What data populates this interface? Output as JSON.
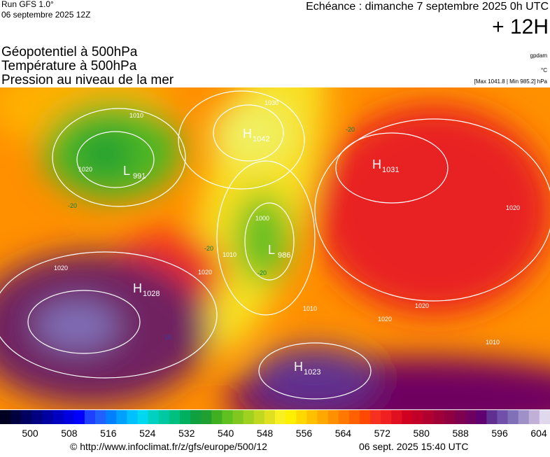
{
  "header": {
    "run": "Run GFS 1.0°",
    "run_date": "06 septembre 2025 12Z",
    "forecast": "Echéance : dimanche 7 septembre 2025 0h UTC",
    "lead": "+ 12H"
  },
  "fields": [
    "Géopotentiel à 500hPa",
    "Température à 500hPa",
    "Pression au niveau de la mer"
  ],
  "units": [
    "gpdam",
    "°C",
    "[Max 1041.8 | Min 985.2] hPa"
  ],
  "centers": [
    {
      "type": "H",
      "value": 1042
    },
    {
      "type": "L",
      "value": 991
    },
    {
      "type": "H",
      "value": 1031
    },
    {
      "type": "L",
      "value": 986
    },
    {
      "type": "H",
      "value": 1028
    },
    {
      "type": "H",
      "value": 1023
    }
  ],
  "isobar_labels": [
    "1010",
    "1020",
    "1030",
    "1000",
    "1010",
    "1020",
    "1020",
    "1010",
    "1020",
    "1020",
    "1020",
    "1010",
    "-20",
    "-20",
    "-20",
    "-20",
    "10"
  ],
  "colorbar": {
    "colors": [
      "#000020",
      "#000040",
      "#000060",
      "#000080",
      "#0000a0",
      "#0000c0",
      "#0000e0",
      "#0000ff",
      "#1e40ff",
      "#2060ff",
      "#0080ff",
      "#00a0ff",
      "#00c0ff",
      "#00d8f0",
      "#00d0c0",
      "#00c8a0",
      "#00c080",
      "#00b060",
      "#10a040",
      "#20a030",
      "#40b020",
      "#60c020",
      "#80c820",
      "#a0d020",
      "#c0d820",
      "#e0e020",
      "#f8f020",
      "#fff000",
      "#ffd800",
      "#ffc000",
      "#ffa800",
      "#ff9000",
      "#ff7800",
      "#ff6000",
      "#ff4800",
      "#f83020",
      "#f02020",
      "#e01020",
      "#d00020",
      "#c00028",
      "#b00030",
      "#a00038",
      "#900040",
      "#800050",
      "#700060",
      "#600070",
      "#603090",
      "#7050a8",
      "#8070b8",
      "#a090c8",
      "#c0b0d8",
      "#e0d8ec"
    ],
    "labels": [
      500,
      508,
      516,
      524,
      532,
      540,
      548,
      556,
      564,
      572,
      580,
      588,
      596,
      604
    ]
  },
  "footer": {
    "url": "© http://www.infoclimat.fr/z/gfs/europe/500/12",
    "timestamp": "06 sept. 2025 15:40 UTC"
  }
}
